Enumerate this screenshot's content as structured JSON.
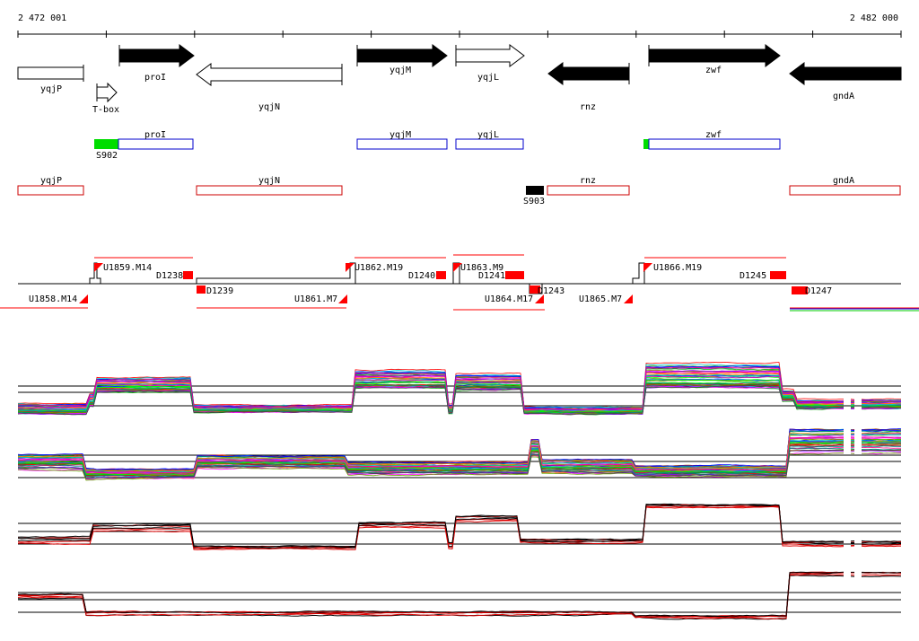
{
  "ruler": {
    "start_label": "2 472 001",
    "end_label": "2 482 000"
  },
  "genes": [
    {
      "name": "yqjP",
      "strand": "-",
      "filled": false,
      "label": "yqjP"
    },
    {
      "name": "T-box",
      "strand": "+",
      "filled": false,
      "label": "T-box"
    },
    {
      "name": "proI",
      "strand": "+",
      "filled": true,
      "label": "proI"
    },
    {
      "name": "yqjN",
      "strand": "-",
      "filled": false,
      "label": "yqjN"
    },
    {
      "name": "yqjM",
      "strand": "+",
      "filled": true,
      "label": "yqjM"
    },
    {
      "name": "yqjL",
      "strand": "+",
      "filled": false,
      "label": "yqjL"
    },
    {
      "name": "rnz",
      "strand": "-",
      "filled": true,
      "label": "rnz"
    },
    {
      "name": "zwf",
      "strand": "+",
      "filled": true,
      "label": "zwf"
    },
    {
      "name": "gndA",
      "strand": "-",
      "filled": true,
      "label": "gndA"
    }
  ],
  "plus_features": [
    {
      "label": "proI"
    },
    {
      "label": "yqjM"
    },
    {
      "label": "yqjL"
    },
    {
      "label": "zwf"
    }
  ],
  "plus_markers": [
    {
      "label": "S902",
      "color": "#00dd00"
    },
    {
      "label": "",
      "color": "#00dd00"
    }
  ],
  "minus_features": [
    {
      "label": "yqjP"
    },
    {
      "label": "yqjN"
    },
    {
      "label": "rnz"
    },
    {
      "label": "gndA"
    }
  ],
  "minus_markers": [
    {
      "label": "S903",
      "color": "#000000"
    }
  ],
  "segments_upper": [
    {
      "label": "U1859.M14"
    },
    {
      "label": "D1238"
    },
    {
      "label": "U1862.M19"
    },
    {
      "label": "D1240"
    },
    {
      "label": "U1863.M9"
    },
    {
      "label": "D1241"
    },
    {
      "label": "U1866.M19"
    },
    {
      "label": "D1245"
    }
  ],
  "segments_lower": [
    {
      "label": "U1858.M14"
    },
    {
      "label": "D1239"
    },
    {
      "label": "U1861.M7"
    },
    {
      "label": "U1864.M17"
    },
    {
      "label": "D1243"
    },
    {
      "label": "U1865.M7"
    },
    {
      "label": "D1247"
    }
  ],
  "colors": {
    "plus_outline": "#0000cc",
    "minus_outline": "#cc0000",
    "segment_red": "#ff0000",
    "trace_black": "#000000",
    "trace_red": "#dd0000"
  }
}
